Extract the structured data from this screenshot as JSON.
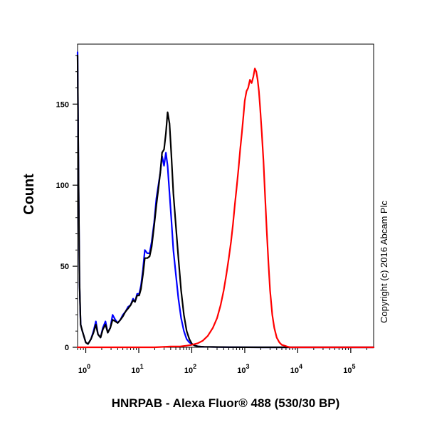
{
  "chart_data": {
    "type": "line",
    "title": "",
    "xlabel": "HNRPAB - Alexa Fluor® 488 (530/30 BP)",
    "ylabel": "Count",
    "xscale": "log",
    "xlim": [
      0.7,
      270000
    ],
    "ylim": [
      0,
      187
    ],
    "x_ticks": [
      {
        "value": 1,
        "base": "10",
        "exp": "0"
      },
      {
        "value": 10,
        "base": "10",
        "exp": "1"
      },
      {
        "value": 100,
        "base": "10",
        "exp": "2"
      },
      {
        "value": 1000,
        "base": "10",
        "exp": "3"
      },
      {
        "value": 10000,
        "base": "10",
        "exp": "4"
      },
      {
        "value": 100000,
        "base": "10",
        "exp": "5"
      }
    ],
    "y_ticks": [
      "0",
      "50",
      "100",
      "150"
    ],
    "grid": false,
    "series": [
      {
        "color": "#0000ff",
        "x": [
          0.7,
          0.73,
          0.76,
          0.8,
          0.86,
          0.92,
          1.0,
          1.1,
          1.25,
          1.4,
          1.55,
          1.7,
          1.9,
          2.1,
          2.35,
          2.6,
          2.9,
          3.2,
          3.6,
          4.0,
          4.5,
          5.0,
          5.6,
          6.3,
          7.0,
          7.8,
          8.5,
          9.3,
          10.2,
          11.0,
          12.0,
          13.0,
          14.5,
          16.0,
          17.5,
          19.5,
          21.5,
          23.5,
          25.5,
          27.5,
          30.0,
          32.5,
          35.0,
          38.0,
          41.0,
          45.0,
          50.0,
          56.0,
          63.0,
          71.0,
          80.0,
          90.0,
          101.0,
          115.0,
          135.0,
          170.0,
          250.0,
          500.0,
          2000.0,
          10000.0,
          50000.0,
          270000.0
        ],
        "y": [
          182,
          100,
          40,
          14,
          10,
          7,
          3,
          2,
          5,
          10,
          16,
          8,
          6,
          12,
          16,
          9,
          12,
          20,
          17,
          15,
          17,
          20,
          22,
          25,
          26,
          30,
          28,
          33,
          33,
          38,
          48,
          60,
          58,
          58,
          65,
          77,
          92,
          100,
          108,
          118,
          112,
          120,
          112,
          95,
          80,
          60,
          45,
          30,
          18,
          10,
          5,
          3,
          2,
          1,
          0.5,
          0.3,
          0.2,
          0.1,
          0,
          0,
          0,
          0
        ]
      },
      {
        "color": "#000000",
        "x": [
          0.7,
          0.73,
          0.76,
          0.8,
          0.86,
          0.92,
          1.0,
          1.1,
          1.25,
          1.4,
          1.55,
          1.7,
          1.9,
          2.1,
          2.35,
          2.6,
          2.9,
          3.2,
          3.6,
          4.0,
          4.5,
          5.0,
          5.6,
          6.3,
          7.0,
          7.8,
          8.5,
          9.3,
          10.2,
          11.0,
          12.0,
          13.0,
          14.5,
          16.0,
          17.5,
          19.5,
          21.5,
          23.5,
          25.5,
          27.5,
          30.0,
          32.5,
          35.0,
          38.0,
          41.0,
          45.0,
          50.0,
          56.0,
          63.0,
          71.0,
          80.0,
          90.0,
          101.0,
          115.0,
          135.0,
          170.0,
          250.0,
          500.0,
          2000.0,
          10000.0,
          50000.0,
          270000.0
        ],
        "y": [
          180,
          100,
          40,
          14,
          10,
          7,
          3,
          2,
          5,
          9,
          14,
          8,
          6,
          11,
          14,
          9,
          12,
          17,
          16,
          15,
          17,
          19,
          22,
          24,
          26,
          29,
          28,
          32,
          32,
          36,
          45,
          55,
          55,
          56,
          62,
          75,
          88,
          98,
          108,
          120,
          122,
          132,
          145,
          138,
          120,
          95,
          75,
          55,
          35,
          20,
          10,
          5,
          2,
          1,
          0.5,
          0.3,
          0.2,
          0.1,
          0,
          0,
          0,
          0
        ]
      },
      {
        "color": "#ff0000",
        "x": [
          0.7,
          5.0,
          20.0,
          40.0,
          60.0,
          80.0,
          100.0,
          130.0,
          160.0,
          200.0,
          250.0,
          300.0,
          350.0,
          400.0,
          450.0,
          500.0,
          550.0,
          600.0,
          650.0,
          700.0,
          760.0,
          820.0,
          880.0,
          940.0,
          1000.0,
          1080.0,
          1160.0,
          1250.0,
          1350.0,
          1450.0,
          1550.0,
          1650.0,
          1750.0,
          1850.0,
          1950.0,
          2100.0,
          2250.0,
          2400.0,
          2600.0,
          2800.0,
          3000.0,
          3300.0,
          3600.0,
          4000.0,
          4500.0,
          5000.0,
          5600.0,
          6300.0,
          7200.0,
          8500.0,
          10000.0,
          20000.0,
          50000.0,
          270000.0
        ],
        "y": [
          0,
          0,
          0,
          0.5,
          0.5,
          1,
          1.5,
          2.5,
          4,
          7,
          12,
          18,
          26,
          35,
          45,
          55,
          65,
          76,
          88,
          98,
          110,
          122,
          132,
          142,
          152,
          158,
          160,
          165,
          163,
          167,
          172,
          170,
          165,
          158,
          148,
          132,
          115,
          95,
          72,
          52,
          35,
          20,
          12,
          6,
          3,
          1.5,
          1,
          0.5,
          0,
          0,
          0,
          0,
          0,
          0
        ]
      }
    ],
    "annotations": [
      "Copyright (c) 2016 Abcam Plc"
    ]
  }
}
